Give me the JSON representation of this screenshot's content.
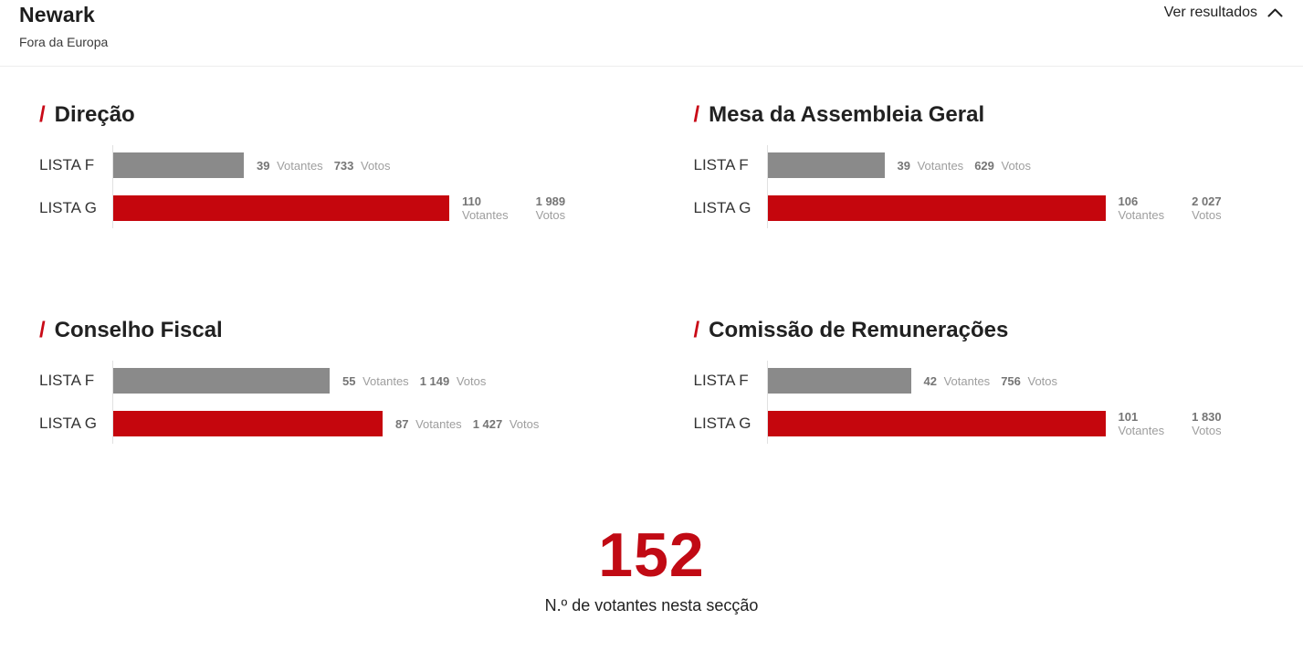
{
  "header": {
    "title": "Newark",
    "subtitle": "Fora da Europa",
    "toggle_label": "Ver resultados",
    "toggle_icon": "chevron-up-icon"
  },
  "labels": {
    "title_prefix": "/",
    "votantes": "Votantes",
    "votos": "Votos"
  },
  "colors": {
    "red": "#c5060d",
    "gray": "#8a8a8a",
    "accent_slash": "#c90a17",
    "big_number": "#c10a14",
    "axis_line": "#e1e1e1"
  },
  "chart_data": [
    {
      "type": "bar",
      "orientation": "horizontal",
      "title": "Direção",
      "categories": [
        "LISTA F",
        "LISTA G"
      ],
      "rows": [
        {
          "label": "LISTA F",
          "votantes": 39,
          "votantes_display": "39",
          "votos": 733,
          "votos_display": "733",
          "color": "gray",
          "bar_pct": 38.7,
          "stacked": false
        },
        {
          "label": "LISTA G",
          "votantes": 110,
          "votantes_display": "110",
          "votos": 1989,
          "votos_display": "1 989",
          "color": "red",
          "bar_pct": 99.5,
          "stacked": true
        }
      ]
    },
    {
      "type": "bar",
      "orientation": "horizontal",
      "title": "Mesa da Assembleia Geral",
      "categories": [
        "LISTA F",
        "LISTA G"
      ],
      "rows": [
        {
          "label": "LISTA F",
          "votantes": 39,
          "votantes_display": "39",
          "votos": 629,
          "votos_display": "629",
          "color": "gray",
          "bar_pct": 34.5,
          "stacked": false
        },
        {
          "label": "LISTA G",
          "votantes": 106,
          "votantes_display": "106",
          "votos": 2027,
          "votos_display": "2 027",
          "color": "red",
          "bar_pct": 100,
          "stacked": true
        }
      ]
    },
    {
      "type": "bar",
      "orientation": "horizontal",
      "title": "Conselho Fiscal",
      "categories": [
        "LISTA F",
        "LISTA G"
      ],
      "rows": [
        {
          "label": "LISTA F",
          "votantes": 55,
          "votantes_display": "55",
          "votos": 1149,
          "votos_display": "1 149",
          "color": "gray",
          "bar_pct": 64.0,
          "stacked": false
        },
        {
          "label": "LISTA G",
          "votantes": 87,
          "votantes_display": "87",
          "votos": 1427,
          "votos_display": "1 427",
          "color": "red",
          "bar_pct": 79.7,
          "stacked": false
        }
      ]
    },
    {
      "type": "bar",
      "orientation": "horizontal",
      "title": "Comissão de Remunerações",
      "categories": [
        "LISTA F",
        "LISTA G"
      ],
      "rows": [
        {
          "label": "LISTA F",
          "votantes": 42,
          "votantes_display": "42",
          "votos": 756,
          "votos_display": "756",
          "color": "gray",
          "bar_pct": 42.4,
          "stacked": false
        },
        {
          "label": "LISTA G",
          "votantes": 101,
          "votantes_display": "101",
          "votos": 1830,
          "votos_display": "1 830",
          "color": "red",
          "bar_pct": 100,
          "stacked": true
        }
      ]
    }
  ],
  "summary": {
    "value": "152",
    "label": "N.º de votantes nesta secção"
  }
}
